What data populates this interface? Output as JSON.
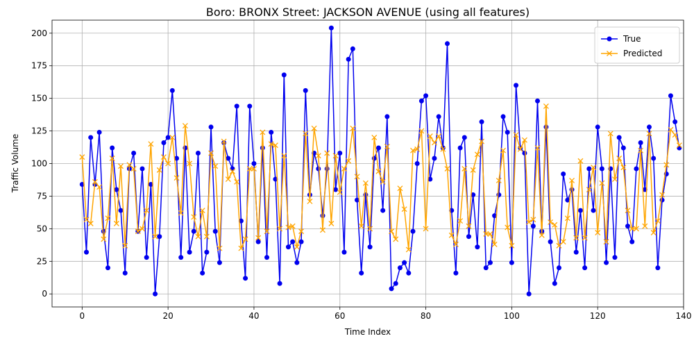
{
  "chart_data": {
    "type": "line",
    "title": "Boro: BRONX Street: JACKSON AVENUE (using all features)",
    "xlabel": "Time Index",
    "ylabel": "Traffic Volume",
    "xlim": [
      -7,
      140
    ],
    "ylim": [
      -10,
      210
    ],
    "x_ticks": [
      0,
      20,
      40,
      60,
      80,
      100,
      120,
      140
    ],
    "y_ticks": [
      0,
      25,
      50,
      75,
      100,
      125,
      150,
      175,
      200
    ],
    "grid": true,
    "legend_position": "top-right",
    "series": [
      {
        "name": "True",
        "color": "#0000ee",
        "marker": "circle",
        "values": [
          84,
          32,
          120,
          84,
          124,
          48,
          20,
          112,
          80,
          64,
          16,
          96,
          108,
          48,
          96,
          28,
          84,
          0,
          44,
          116,
          120,
          156,
          104,
          28,
          112,
          32,
          48,
          108,
          16,
          32,
          128,
          48,
          24,
          116,
          104,
          96,
          144,
          56,
          12,
          144,
          100,
          40,
          112,
          28,
          124,
          88,
          8,
          168,
          36,
          40,
          24,
          40,
          156,
          76,
          108,
          96,
          60,
          96,
          204,
          80,
          108,
          32,
          180,
          188,
          72,
          16,
          76,
          36,
          104,
          112,
          64,
          136,
          4,
          8,
          20,
          24,
          16,
          48,
          100,
          148,
          152,
          88,
          104,
          136,
          112,
          192,
          64,
          16,
          112,
          120,
          44,
          76,
          36,
          132,
          20,
          24,
          60,
          76,
          136,
          124,
          24,
          160,
          112,
          108,
          0,
          52,
          148,
          48,
          128,
          40,
          8,
          20,
          92,
          72,
          80,
          32,
          64,
          20,
          96,
          64,
          128,
          96,
          24,
          96,
          28,
          120,
          112,
          52,
          40,
          96,
          116,
          80,
          128,
          104,
          20,
          72,
          92,
          152,
          132,
          112
        ]
      },
      {
        "name": "Predicted",
        "color": "#ffa500",
        "marker": "x",
        "values": [
          105,
          57,
          54,
          86,
          82,
          42,
          58,
          104,
          54,
          98,
          37,
          99,
          96,
          48,
          50,
          64,
          115,
          44,
          95,
          105,
          100,
          120,
          89,
          62,
          129,
          100,
          59,
          44,
          64,
          44,
          108,
          98,
          35,
          117,
          88,
          94,
          86,
          35,
          42,
          96,
          96,
          43,
          124,
          48,
          115,
          114,
          50,
          106,
          51,
          52,
          36,
          48,
          123,
          71,
          127,
          106,
          49,
          108,
          54,
          106,
          78,
          96,
          102,
          127,
          90,
          52,
          85,
          50,
          120,
          94,
          86,
          113,
          48,
          42,
          81,
          65,
          34,
          110,
          111,
          125,
          50,
          121,
          116,
          121,
          111,
          96,
          45,
          38,
          56,
          96,
          52,
          95,
          107,
          117,
          46,
          46,
          38,
          87,
          110,
          51,
          37,
          122,
          111,
          118,
          55,
          57,
          112,
          45,
          144,
          55,
          53,
          37,
          40,
          58,
          87,
          43,
          102,
          43,
          80,
          97,
          47,
          85,
          40,
          123,
          88,
          104,
          97,
          64,
          50,
          50,
          110,
          52,
          123,
          47,
          56,
          76,
          99,
          126,
          122,
          114
        ]
      }
    ]
  }
}
